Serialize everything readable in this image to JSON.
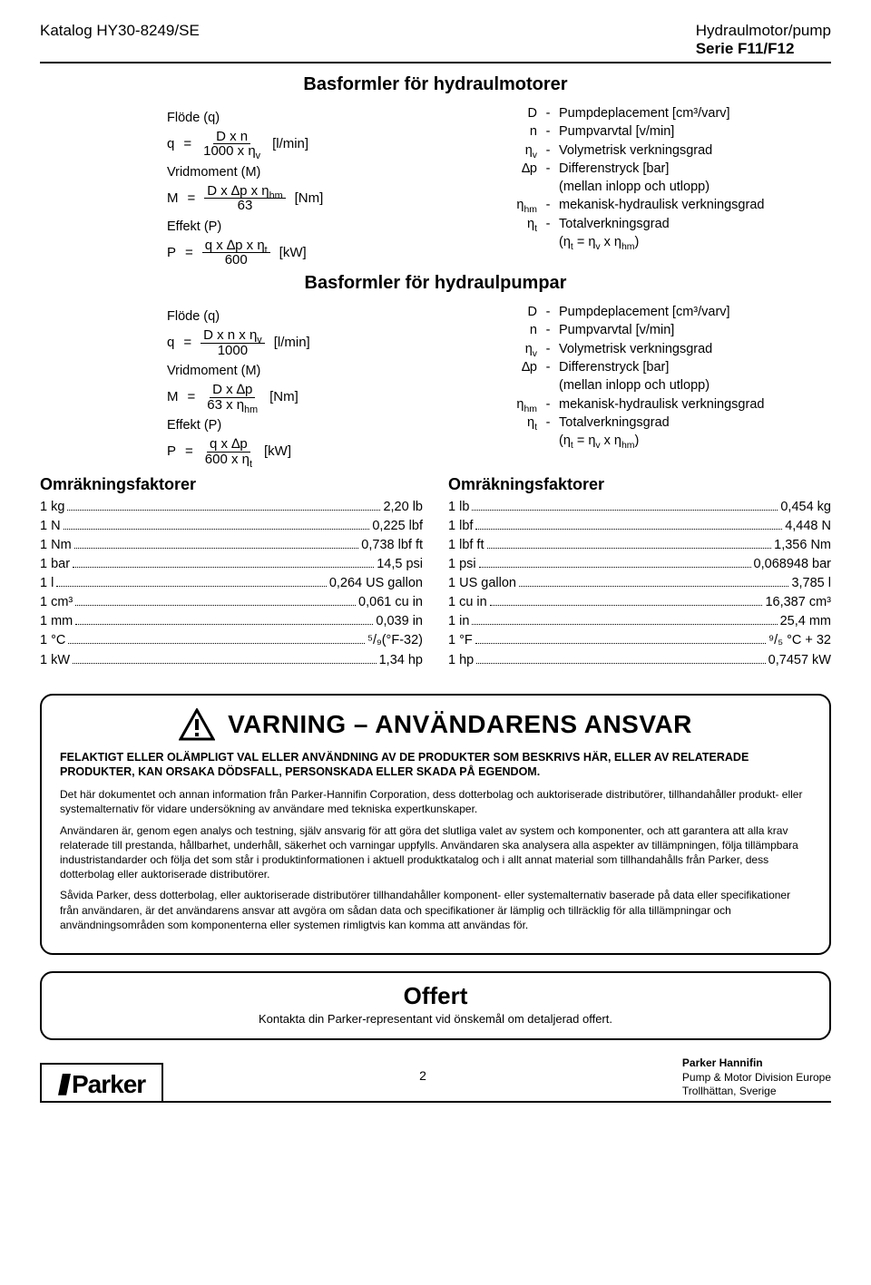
{
  "header": {
    "catalog": "Katalog HY30-8249/SE",
    "product": "Hydraulmotor/pump",
    "series": "Serie F11/F12"
  },
  "section_motors": {
    "title": "Basformler för hydraulmotorer",
    "flow_label": "Flöde (q)",
    "flow_var": "q",
    "flow_num": "D x n",
    "flow_den": "1000 x ηv",
    "flow_unit": "[l/min]",
    "torque_label": "Vridmoment (M)",
    "torque_var": "M",
    "torque_num": "D x ∆p x ηhm",
    "torque_den": "63",
    "torque_unit": "[Nm]",
    "power_label": "Effekt (P)",
    "power_var": "P",
    "power_num": "q x ∆p x ηt",
    "power_den": "600",
    "power_unit": "[kW]",
    "defs": [
      {
        "sym": "D",
        "txt": "Pumpdeplacement [cm³/varv]"
      },
      {
        "sym": "n",
        "txt": "Pumpvarvtal [v/min]"
      },
      {
        "sym": "ηv",
        "txt": "Volymetrisk verkningsgrad"
      },
      {
        "sym": "∆p",
        "txt": "Differenstryck [bar]"
      },
      {
        "sym": "",
        "txt": "(mellan inlopp och utlopp)",
        "nodash": true
      },
      {
        "sym": "ηhm",
        "txt": "mekanisk-hydraulisk verkningsgrad"
      },
      {
        "sym": "ηt",
        "txt": "Totalverkningsgrad"
      },
      {
        "sym": "",
        "txt": "(ηt = ηv x ηhm)",
        "nodash": true
      }
    ]
  },
  "section_pumps": {
    "title": "Basformler för hydraulpumpar",
    "flow_label": "Flöde (q)",
    "flow_var": "q",
    "flow_num": "D x n x ηv",
    "flow_den": "1000",
    "flow_unit": "[l/min]",
    "torque_label": "Vridmoment (M)",
    "torque_var": "M",
    "torque_num": "D x ∆p",
    "torque_den": "63 x ηhm",
    "torque_unit": "[Nm]",
    "power_label": "Effekt (P)",
    "power_var": "P",
    "power_num": "q x ∆p",
    "power_den": "600 x ηt",
    "power_unit": "[kW]",
    "defs": [
      {
        "sym": "D",
        "txt": "Pumpdeplacement [cm³/varv]"
      },
      {
        "sym": "n",
        "txt": "Pumpvarvtal [v/min]"
      },
      {
        "sym": "ηv",
        "txt": "Volymetrisk verkningsgrad"
      },
      {
        "sym": "∆p",
        "txt": "Differenstryck [bar]"
      },
      {
        "sym": "",
        "txt": "(mellan inlopp och utlopp)",
        "nodash": true
      },
      {
        "sym": "ηhm",
        "txt": "mekanisk-hydraulisk verkningsgrad"
      },
      {
        "sym": "ηt",
        "txt": "Totalverkningsgrad"
      },
      {
        "sym": "",
        "txt": "(ηt = ηv x ηhm)",
        "nodash": true
      }
    ]
  },
  "conversions": {
    "left_title": "Omräkningsfaktorer",
    "right_title": "Omräkningsfaktorer",
    "left": [
      {
        "l": "1 kg",
        "r": "2,20 lb"
      },
      {
        "l": "1 N",
        "r": "0,225 lbf"
      },
      {
        "l": "1 Nm",
        "r": "0,738 lbf ft"
      },
      {
        "l": "1 bar",
        "r": "14,5 psi"
      },
      {
        "l": "1 l",
        "r": "0,264 US gallon"
      },
      {
        "l": "1 cm³",
        "r": "0,061 cu in"
      },
      {
        "l": "1 mm",
        "r": "0,039 in"
      },
      {
        "l": "1 °C",
        "r": "⁵/₉(°F-32)"
      },
      {
        "l": "1 kW",
        "r": "1,34 hp"
      }
    ],
    "right": [
      {
        "l": "1 lb",
        "r": "0,454 kg"
      },
      {
        "l": "1 lbf",
        "r": "4,448 N"
      },
      {
        "l": "1 lbf ft",
        "r": "1,356 Nm"
      },
      {
        "l": "1 psi",
        "r": "0,068948 bar"
      },
      {
        "l": "1 US gallon",
        "r": "3,785 l"
      },
      {
        "l": "1 cu in",
        "r": "16,387 cm³"
      },
      {
        "l": "1 in",
        "r": "25,4 mm"
      },
      {
        "l": "1 °F",
        "r": "⁹/₅ °C + 32"
      },
      {
        "l": "1 hp",
        "r": "0,7457 kW"
      }
    ]
  },
  "warning": {
    "title": "VARNING – ANVÄNDARENS ANSVAR",
    "lead": "FELAKTIGT ELLER OLÄMPLIGT VAL ELLER ANVÄNDNING AV DE PRODUKTER SOM BESKRIVS HÄR, ELLER AV RELATERADE PRODUKTER, KAN ORSAKA DÖDSFALL, PERSONSKADA ELLER SKADA PÅ EGENDOM.",
    "p1": "Det här dokumentet och annan information från Parker-Hannifin Corporation, dess dotterbolag och auktoriserade distributörer, tillhandahåller produkt- eller systemalternativ för vidare undersökning av användare med tekniska expertkunskaper.",
    "p2": "Användaren är, genom egen analys och testning, själv ansvarig för att göra det slutliga valet av system och komponenter, och att garantera att alla krav relaterade till prestanda, hållbarhet, underhåll, säkerhet och varningar uppfylls. Användaren ska analysera alla aspekter av tillämpningen, följa tillämpbara industristandarder och följa det som står i produktinformationen i aktuell produkt­katalog och i allt annat material som tillhandahålls från Parker, dess dotterbolag eller auktoriserade distributörer.",
    "p3": "Såvida Parker, dess dotterbolag, eller auktoriserade distributörer tillhandahåller komponent- eller systemalternativ baserade på data eller specifikationer från användaren, är det användarens ansvar att avgöra om sådan data och specifikationer är lämplig och tillräcklig för alla tillämpningar och användningsområden som komponenterna eller systemen rimligtvis kan komma att användas för."
  },
  "offer": {
    "title": "Offert",
    "sub": "Kontakta din Parker-representant vid önskemål om detaljerad offert."
  },
  "footer": {
    "logo": "Parker",
    "page": "2",
    "company": "Parker Hannifin",
    "division": "Pump & Motor Division Europe",
    "location": "Trollhättan, Sverige"
  }
}
